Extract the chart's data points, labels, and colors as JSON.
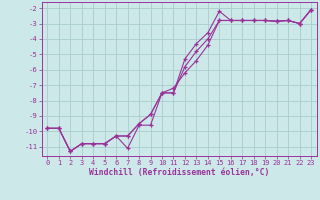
{
  "xlabel": "Windchill (Refroidissement éolien,°C)",
  "xlim": [
    -0.5,
    23.5
  ],
  "ylim": [
    -11.6,
    -1.6
  ],
  "yticks": [
    -2,
    -3,
    -4,
    -5,
    -6,
    -7,
    -8,
    -9,
    -10,
    -11
  ],
  "xticks": [
    0,
    1,
    2,
    3,
    4,
    5,
    6,
    7,
    8,
    9,
    10,
    11,
    12,
    13,
    14,
    15,
    16,
    17,
    18,
    19,
    20,
    21,
    22,
    23
  ],
  "bg_color": "#cce8e8",
  "grid_color": "#aacccc",
  "line_color": "#993399",
  "line1_x": [
    0,
    1,
    2,
    3,
    4,
    5,
    6,
    7,
    8,
    9,
    10,
    11,
    12,
    13,
    14,
    15,
    16,
    17,
    18,
    19,
    20,
    21,
    22,
    23
  ],
  "line1_y": [
    -9.8,
    -9.8,
    -11.3,
    -10.8,
    -10.8,
    -10.8,
    -10.3,
    -11.1,
    -9.6,
    -9.6,
    -7.5,
    -7.5,
    -5.3,
    -4.3,
    -3.6,
    -2.2,
    -2.8,
    -2.8,
    -2.8,
    -2.8,
    -2.85,
    -2.8,
    -3.0,
    -2.1
  ],
  "line2_x": [
    0,
    1,
    2,
    3,
    4,
    5,
    6,
    7,
    8,
    9,
    10,
    11,
    12,
    13,
    14,
    15,
    16,
    17,
    18,
    19,
    20,
    21,
    22,
    23
  ],
  "line2_y": [
    -9.8,
    -9.8,
    -11.3,
    -10.8,
    -10.8,
    -10.8,
    -10.3,
    -10.3,
    -9.5,
    -8.9,
    -7.5,
    -7.5,
    -5.8,
    -4.8,
    -4.0,
    -2.8,
    -2.8,
    -2.8,
    -2.8,
    -2.8,
    -2.85,
    -2.8,
    -3.0,
    -2.1
  ],
  "line3_x": [
    0,
    1,
    2,
    3,
    4,
    5,
    6,
    7,
    8,
    9,
    10,
    11,
    12,
    13,
    14,
    15,
    16,
    17,
    18,
    19,
    20,
    21,
    22,
    23
  ],
  "line3_y": [
    -9.8,
    -9.8,
    -11.3,
    -10.8,
    -10.8,
    -10.8,
    -10.3,
    -10.3,
    -9.5,
    -8.9,
    -7.5,
    -7.2,
    -6.2,
    -5.4,
    -4.4,
    -2.8,
    -2.8,
    -2.8,
    -2.8,
    -2.8,
    -2.85,
    -2.8,
    -3.0,
    -2.1
  ]
}
